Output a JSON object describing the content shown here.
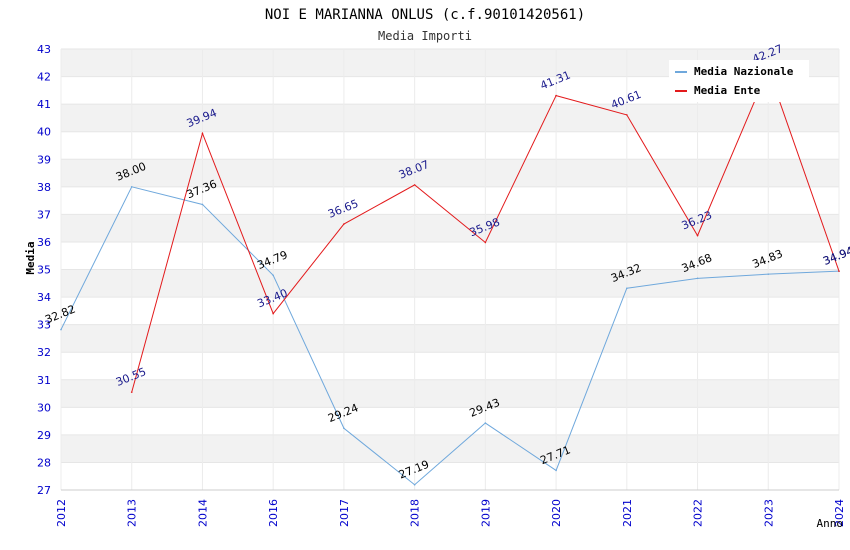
{
  "chart_data": {
    "type": "line",
    "title": "NOI E MARIANNA ONLUS (c.f.90101420561)",
    "subtitle": "Media Importi",
    "xlabel": "Anno",
    "ylabel": "Media",
    "ylim": [
      27,
      43
    ],
    "yticks": [
      27,
      28,
      29,
      30,
      31,
      32,
      33,
      34,
      35,
      36,
      37,
      38,
      39,
      40,
      41,
      42,
      43
    ],
    "categories": [
      "2012",
      "2013",
      "2014",
      "2016",
      "2017",
      "2018",
      "2019",
      "2020",
      "2021",
      "2022",
      "2023",
      "2024"
    ],
    "grid": "horizontal bands",
    "legend_position": "top-right",
    "series": [
      {
        "name": "Media Nazionale",
        "color": "#6fa8dc",
        "label_color": "#000000",
        "values": [
          32.82,
          38.0,
          37.36,
          34.79,
          29.24,
          27.19,
          29.43,
          27.71,
          34.32,
          34.68,
          34.83,
          34.94
        ],
        "labels": [
          "32.82",
          "38.00",
          "37.36",
          "34.79",
          "29.24",
          "27.19",
          "29.43",
          "27.71",
          "34.32",
          "34.68",
          "34.83",
          "34.94"
        ]
      },
      {
        "name": "Media Ente",
        "color": "#e31a1c",
        "label_color": "#1a1a8c",
        "values": [
          null,
          30.55,
          39.94,
          33.4,
          36.65,
          38.07,
          35.98,
          41.31,
          40.61,
          36.23,
          42.27,
          34.94
        ],
        "labels": [
          "",
          "30.55",
          "39.94",
          "33.40",
          "36.65",
          "38.07",
          "35.98",
          "41.31",
          "40.61",
          "36.23",
          "42.27",
          "34.94"
        ]
      }
    ]
  }
}
